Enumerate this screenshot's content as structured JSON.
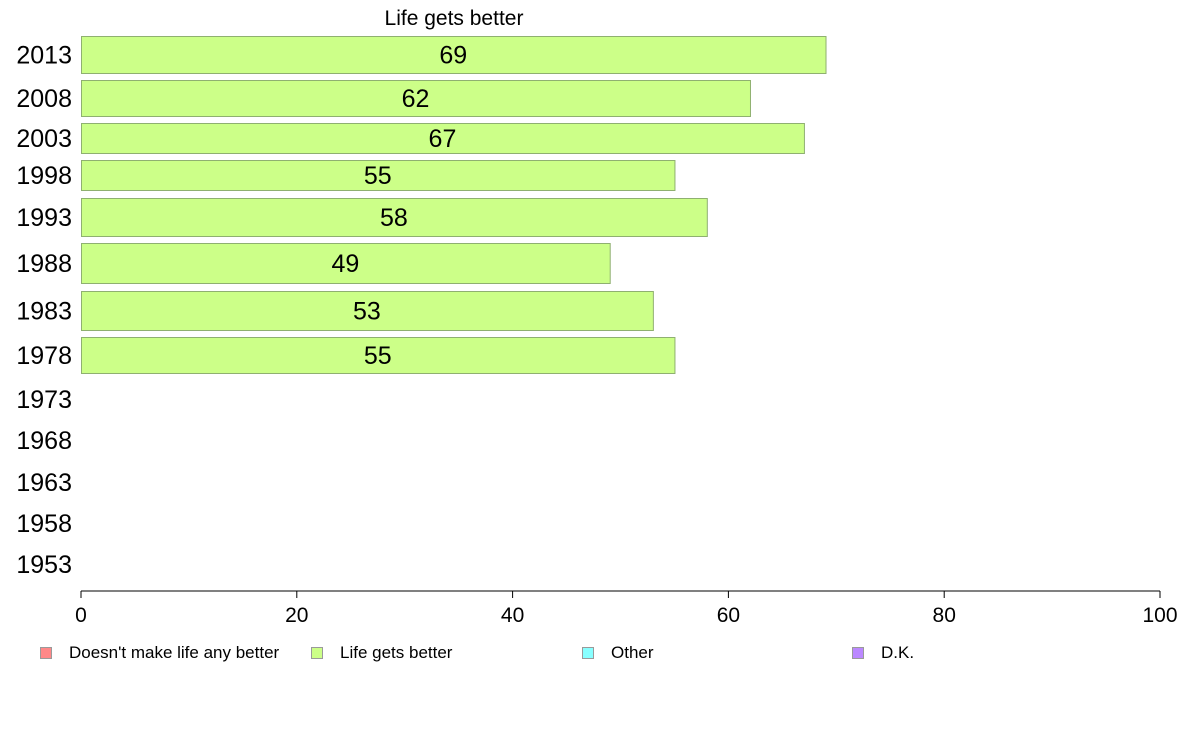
{
  "chart_data": {
    "type": "bar",
    "orientation": "horizontal",
    "title": "Life gets better",
    "categories": [
      "2013",
      "2008",
      "2003",
      "1998",
      "1993",
      "1988",
      "1983",
      "1978",
      "1973",
      "1968",
      "1963",
      "1958",
      "1953"
    ],
    "series": [
      {
        "name": "Life gets better",
        "values": [
          69,
          62,
          67,
          55,
          58,
          49,
          53,
          55,
          null,
          null,
          null,
          null,
          null
        ],
        "color": "#ccff88"
      }
    ],
    "data_labels": [
      "69",
      "62",
      "67",
      "55",
      "58",
      "49",
      "53",
      "55",
      "",
      "",
      "",
      "",
      ""
    ],
    "x_ticks": [
      "0",
      "20",
      "40",
      "60",
      "80",
      "100"
    ],
    "xlim": [
      0,
      100
    ],
    "grid": false,
    "legend_position": "bottom",
    "legend": [
      {
        "label": "Doesn't make life any better",
        "color": "#ff8888"
      },
      {
        "label": "Life gets better",
        "color": "#ccff88"
      },
      {
        "label": "Other",
        "color": "#88ffff"
      },
      {
        "label": "D.K.",
        "color": "#bb88ff"
      }
    ]
  }
}
